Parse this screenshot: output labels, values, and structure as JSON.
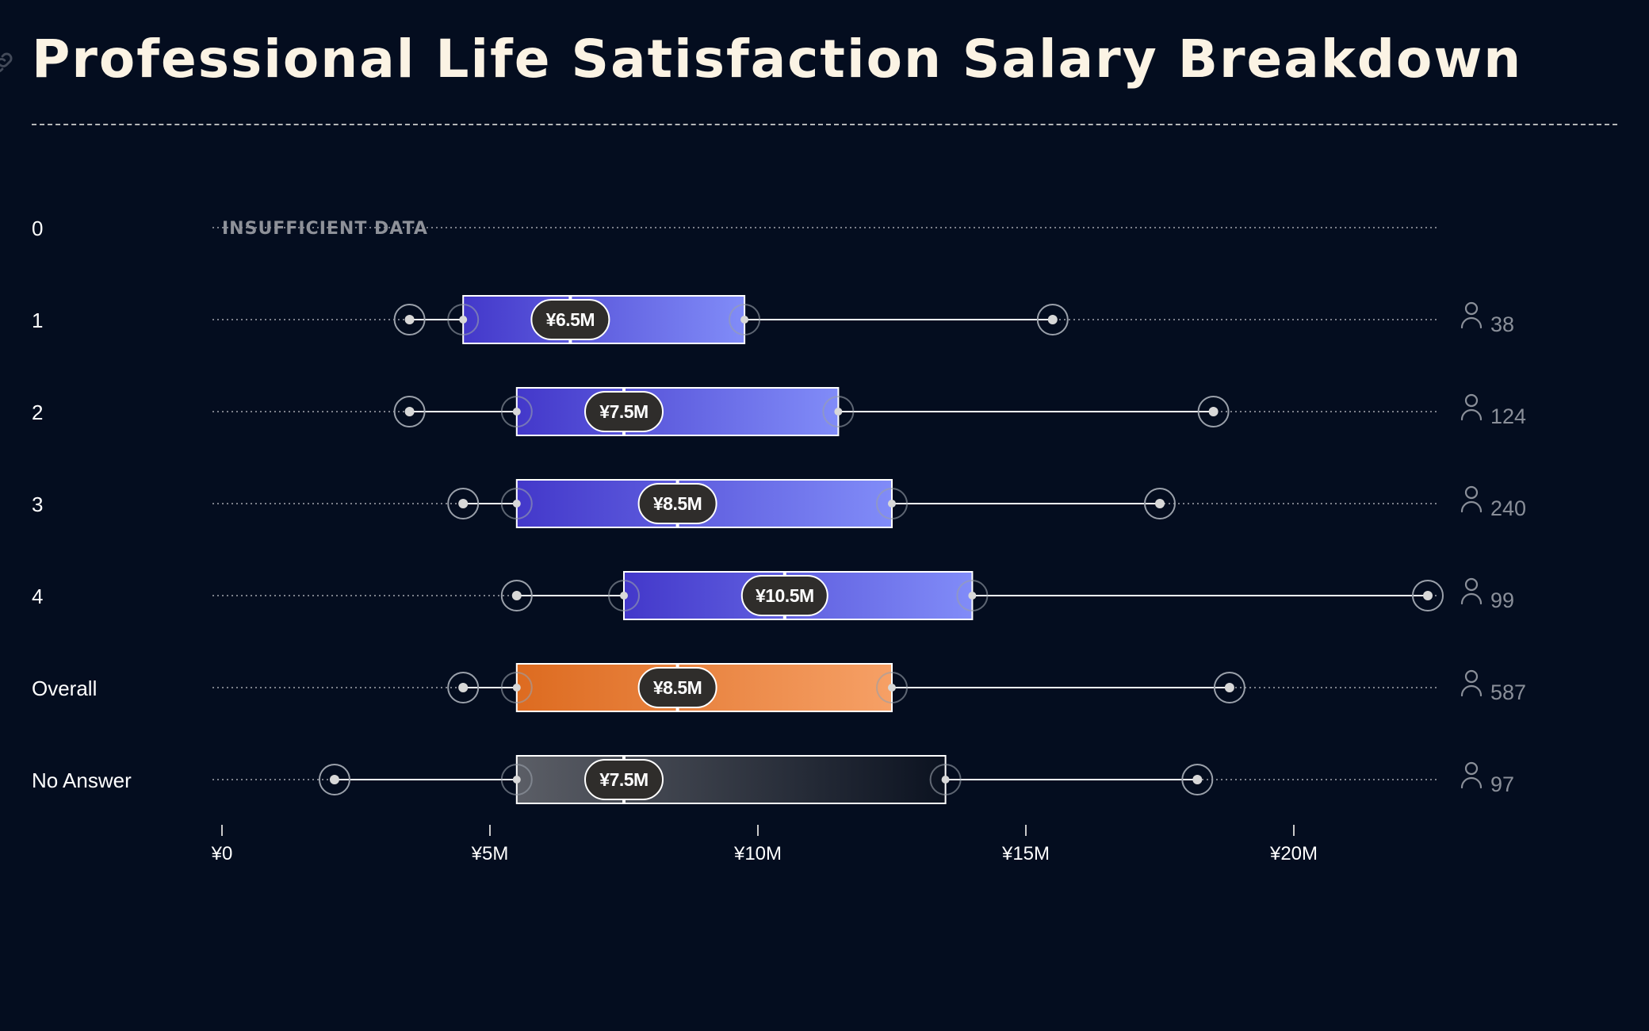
{
  "title": "Professional Life Satisfaction Salary Breakdown",
  "icons": {
    "title_icon": "link-icon",
    "count_icon": "person-icon"
  },
  "colors": {
    "background": "#040d1f",
    "title": "#fbf3e4",
    "group_box": [
      "#4338ca",
      "#818cf8"
    ],
    "overall_box": [
      "#dd6b20",
      "#f6a066"
    ],
    "no_answer_box": [
      "#5b5e66",
      "#0b1220"
    ],
    "whisker": "#ffffff",
    "count_text": "#8a8f99"
  },
  "chart_data": {
    "type": "boxplot",
    "orientation": "horizontal",
    "x_axis": {
      "min": 0,
      "max": 22.7,
      "unit": "¥M",
      "ticks": [
        {
          "value": 0,
          "label": "¥0"
        },
        {
          "value": 5,
          "label": "¥5M"
        },
        {
          "value": 10,
          "label": "¥10M"
        },
        {
          "value": 15,
          "label": "¥15M"
        },
        {
          "value": 20,
          "label": "¥20M"
        }
      ]
    },
    "grid": false,
    "series": [
      {
        "category": "0",
        "insufficient": true,
        "note": "INSUFFICIENT DATA"
      },
      {
        "category": "1",
        "min": 3.5,
        "q1": 4.5,
        "median": 6.5,
        "q3": 9.75,
        "max": 15.5,
        "median_label": "¥6.5M",
        "count": "38",
        "style": "group"
      },
      {
        "category": "2",
        "min": 3.5,
        "q1": 5.5,
        "median": 7.5,
        "q3": 11.5,
        "max": 18.5,
        "median_label": "¥7.5M",
        "count": "124",
        "style": "group"
      },
      {
        "category": "3",
        "min": 4.5,
        "q1": 5.5,
        "median": 8.5,
        "q3": 12.5,
        "max": 17.5,
        "median_label": "¥8.5M",
        "count": "240",
        "style": "group"
      },
      {
        "category": "4",
        "min": 5.5,
        "q1": 7.5,
        "median": 10.5,
        "q3": 14.0,
        "max": 22.5,
        "median_label": "¥10.5M",
        "count": "99",
        "style": "group"
      },
      {
        "category": "Overall",
        "min": 4.5,
        "q1": 5.5,
        "median": 8.5,
        "q3": 12.5,
        "max": 18.8,
        "median_label": "¥8.5M",
        "count": "587",
        "style": "overall"
      },
      {
        "category": "No Answer",
        "min": 2.1,
        "q1": 5.5,
        "median": 7.5,
        "q3": 13.5,
        "max": 18.2,
        "median_label": "¥7.5M",
        "count": "97",
        "style": "no_answer"
      }
    ]
  }
}
